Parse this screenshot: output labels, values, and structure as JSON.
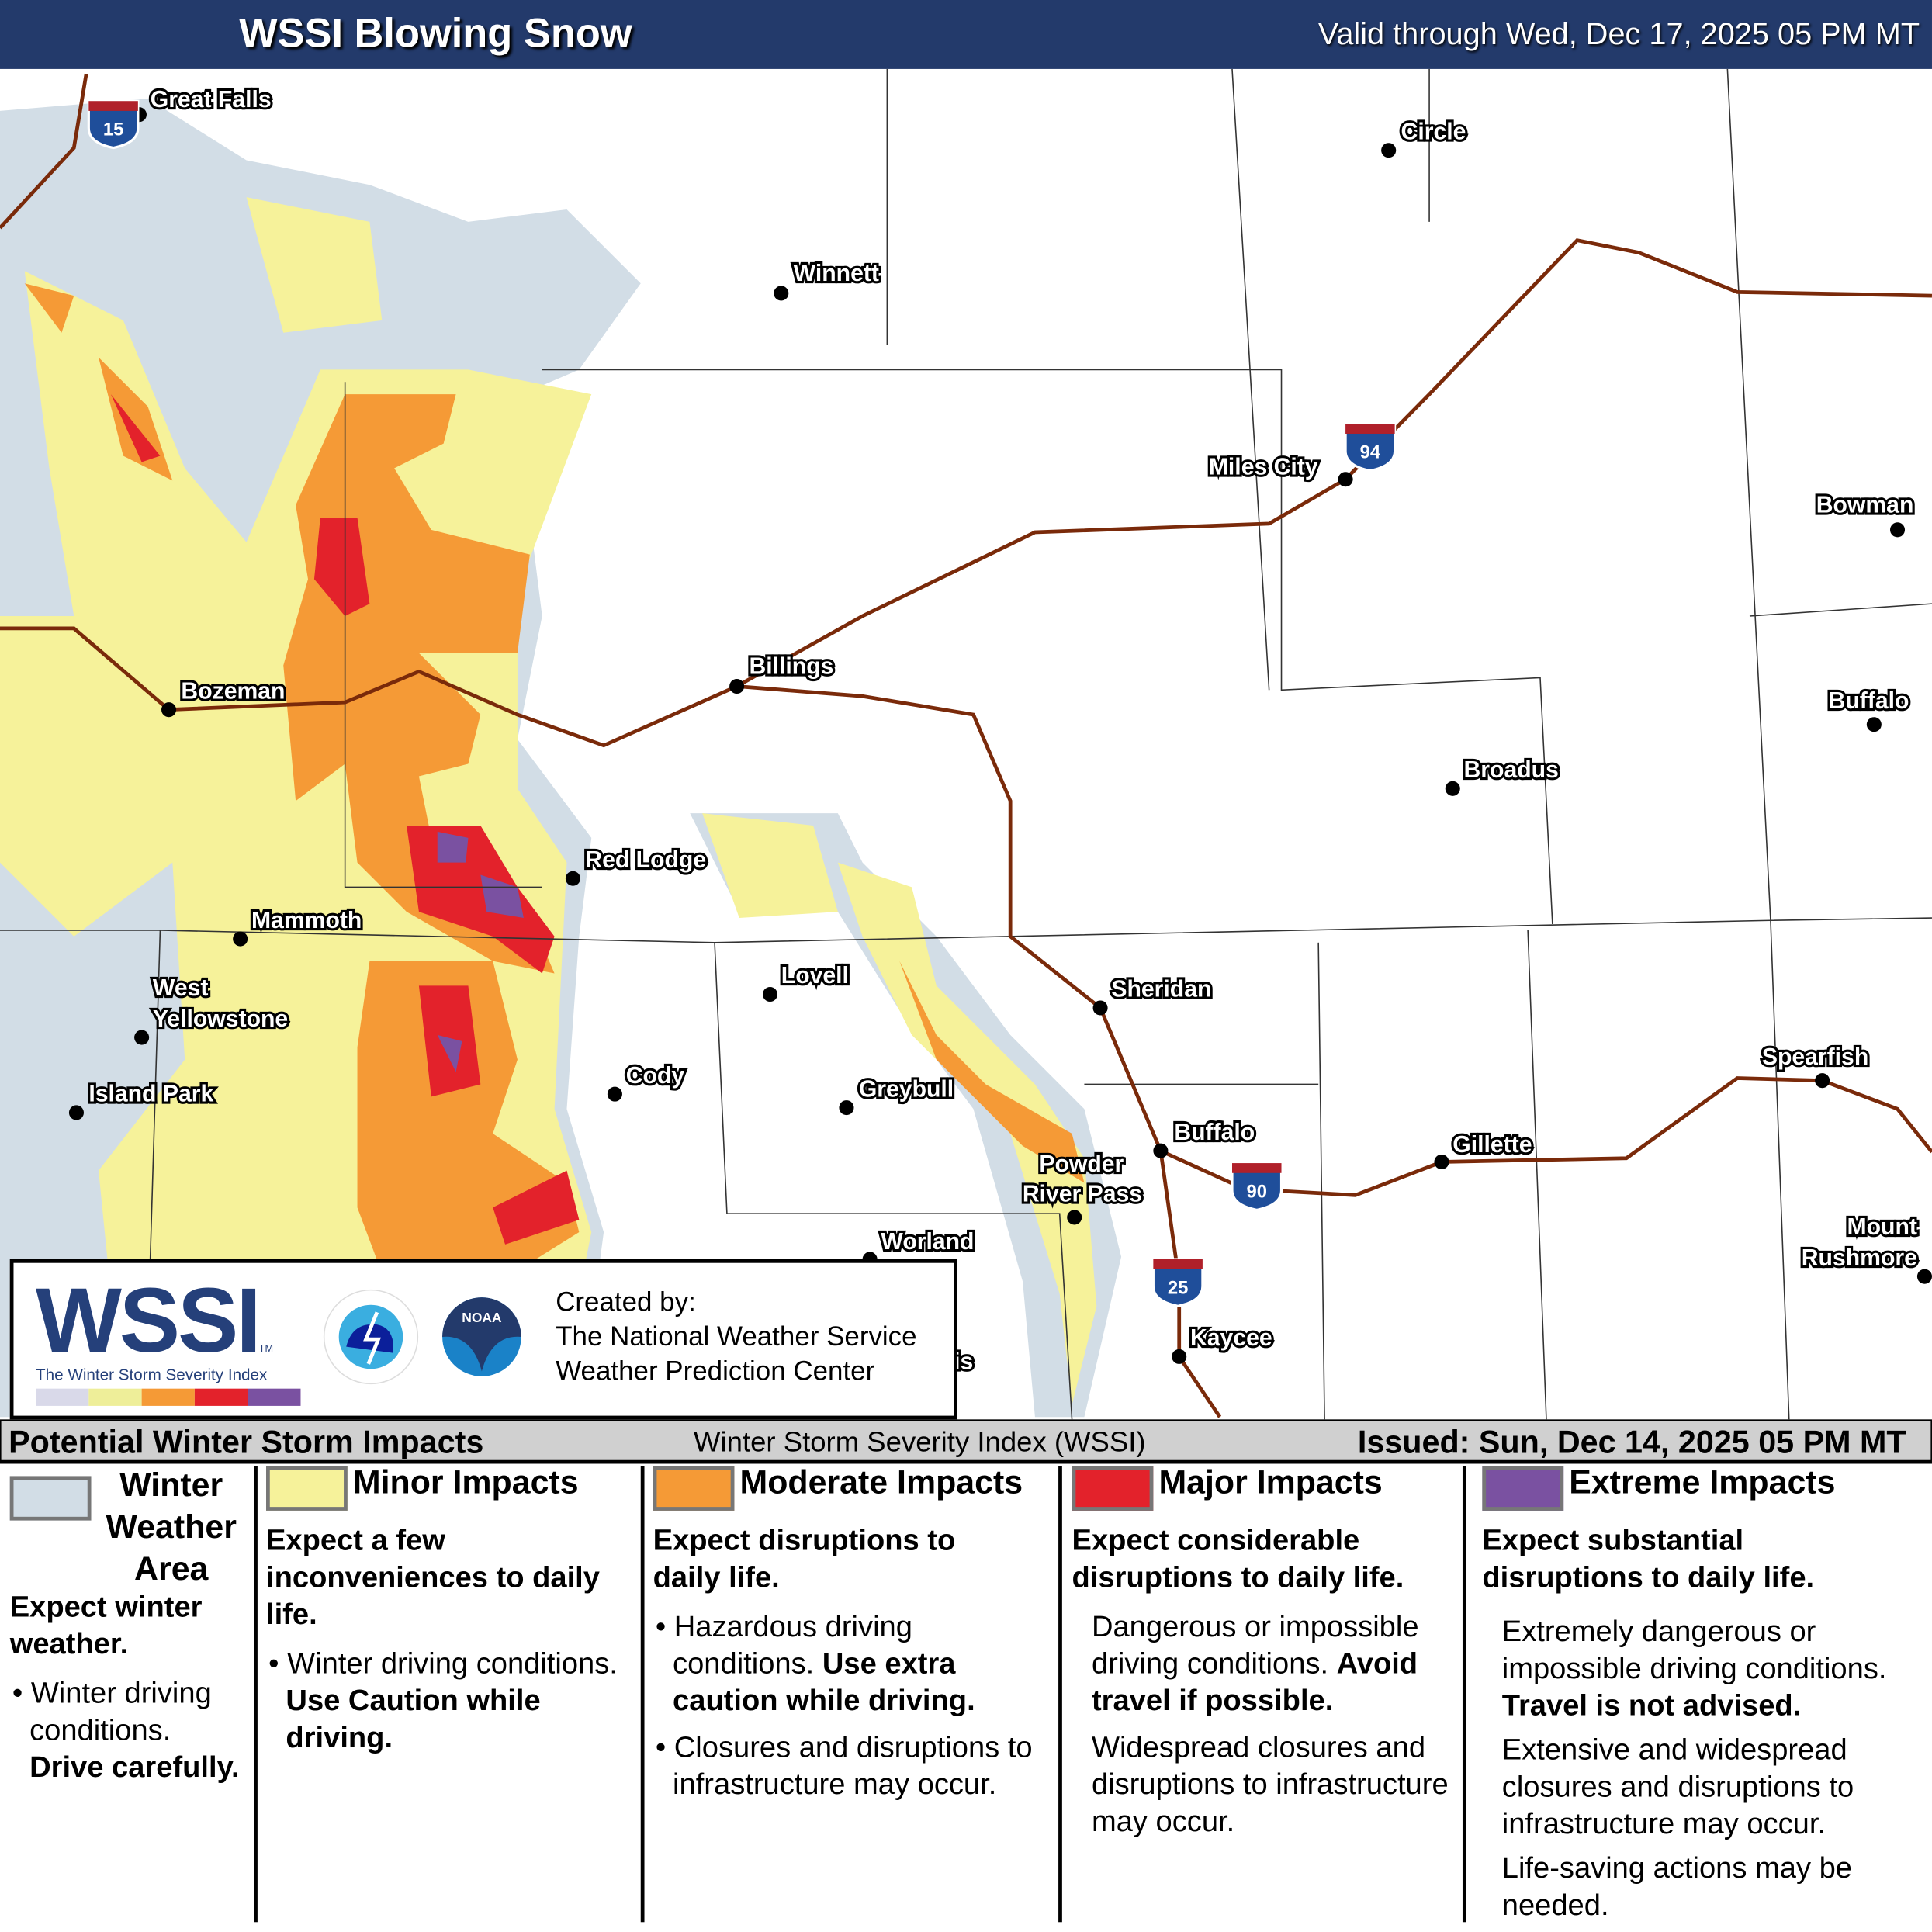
{
  "header": {
    "title": "WSSI Blowing Snow",
    "valid": "Valid through Wed, Dec 17, 2025 05 PM MT"
  },
  "map": {
    "cities": [
      {
        "name": "Great Falls"
      },
      {
        "name": "Circle"
      },
      {
        "name": "Winnett"
      },
      {
        "name": "Miles City"
      },
      {
        "name": "Bowman"
      },
      {
        "name": "Buffalo"
      },
      {
        "name": "Billings"
      },
      {
        "name": "Bozeman"
      },
      {
        "name": "Broadus"
      },
      {
        "name": "Red Lodge"
      },
      {
        "name": "Mammoth"
      },
      {
        "name": "Lovell"
      },
      {
        "name": "Sheridan"
      },
      {
        "name": "West"
      },
      {
        "name": "Yellowstone"
      },
      {
        "name": "Spearfish"
      },
      {
        "name": "Cody"
      },
      {
        "name": "Island Park"
      },
      {
        "name": "Greybull"
      },
      {
        "name": "Buffalo"
      },
      {
        "name": "Gillette"
      },
      {
        "name": "Powder"
      },
      {
        "name": "River Pass"
      },
      {
        "name": "Worland"
      },
      {
        "name": "Mount"
      },
      {
        "name": "Rushmore"
      },
      {
        "name": "Kaycee"
      },
      {
        "name": "is"
      }
    ],
    "interstates": [
      "15",
      "94",
      "90",
      "25"
    ],
    "colors": {
      "winter": "#d2dde6",
      "minor": "#f6f29a",
      "moderate": "#f59a36",
      "major": "#e3222b",
      "extreme": "#7a51a1",
      "road": "#7a2a0a",
      "shield_top": "#b0202a",
      "shield_bottom": "#1f4e9a"
    }
  },
  "logo": {
    "wssi": "WSSI",
    "tm": "TM",
    "subtitle": "The Winter Storm Severity Index",
    "created_by": "Created by:",
    "org1": "The National Weather Service",
    "org2": "Weather Prediction Center",
    "scale_colors": [
      "#d9d9e9",
      "#eeee99",
      "#f59a36",
      "#e3222b",
      "#7a51a1"
    ]
  },
  "bar": {
    "left": "Potential Winter Storm Impacts",
    "center": "Winter Storm Severity Index (WSSI)",
    "right": "Issued: Sun, Dec 14, 2025 05 PM MT"
  },
  "legend": [
    {
      "title": "Winter Weather Area",
      "color": "#d2dde6",
      "headline": "Expect winter weather.",
      "bullet": "Winter driving conditions.",
      "bullet_bold": "Drive carefully."
    },
    {
      "title": "Minor Impacts",
      "color": "#f6f29a",
      "headline": "Expect a few inconveniences to daily life.",
      "bullet": "Winter driving conditions.",
      "bullet_bold": "Use Caution while driving."
    },
    {
      "title": "Moderate Impacts",
      "color": "#f59a36",
      "headline": "Expect disruptions to daily life.",
      "bullet": "Hazardous driving conditions.",
      "bullet_bold": "Use extra caution while driving.",
      "bullet2": "Closures and disruptions to infrastructure may occur."
    },
    {
      "title": "Major Impacts",
      "color": "#e3222b",
      "headline": "Expect considerable disruptions to daily life.",
      "bullet": "Dangerous or impossible driving conditions.",
      "bullet_bold": "Avoid travel if possible.",
      "bullet2": "Widespread closures and disruptions to infrastructure may occur."
    },
    {
      "title": "Extreme Impacts",
      "color": "#7a51a1",
      "headline": "Expect substantial disruptions to daily life.",
      "bullet": "Extremely dangerous or impossible driving conditions.",
      "bullet_bold": "Travel is not advised.",
      "bullet2": "Extensive and widespread closures and disruptions to infrastructure may occur.",
      "bullet3": "Life-saving actions may be needed."
    }
  ]
}
